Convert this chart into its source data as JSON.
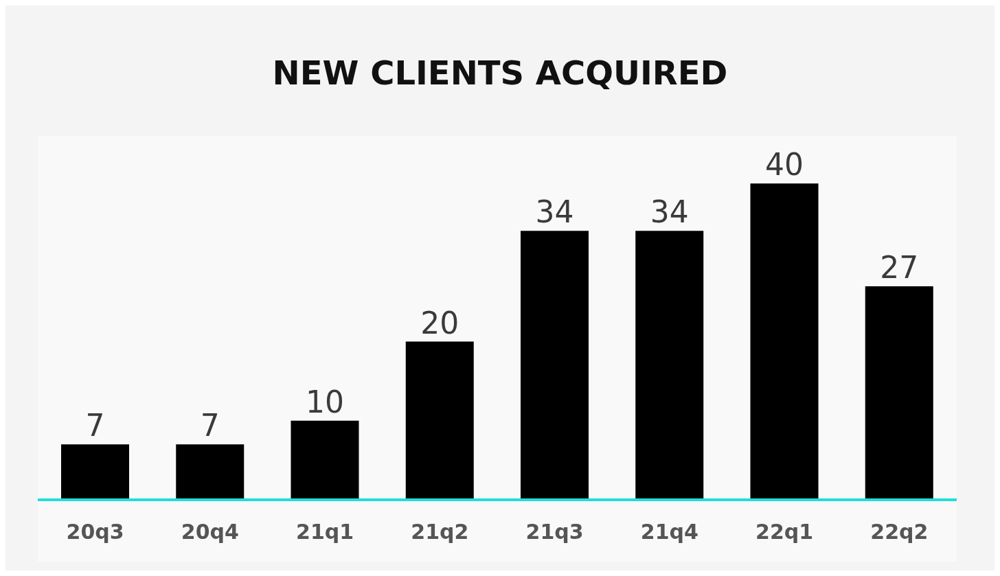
{
  "chart_data": {
    "type": "bar",
    "title": "NEW CLIENTS ACQUIRED",
    "categories": [
      "20q3",
      "20q4",
      "21q1",
      "21q2",
      "21q3",
      "21q4",
      "22q1",
      "22q2"
    ],
    "values": [
      7,
      7,
      10,
      20,
      34,
      34,
      40,
      27
    ],
    "color": "#000000",
    "data_labels": true
  }
}
